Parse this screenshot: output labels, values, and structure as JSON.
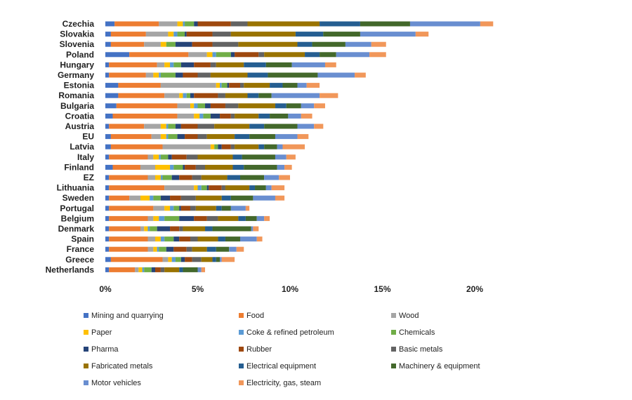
{
  "chart_data": {
    "type": "bar",
    "orientation": "horizontal",
    "stacked": true,
    "title": "",
    "xlabel": "",
    "ylabel": "",
    "xlim": [
      0,
      21
    ],
    "x_ticks": [
      0,
      5,
      10,
      15,
      20
    ],
    "x_tick_labels": [
      "0%",
      "5%",
      "10%",
      "15%",
      "20%"
    ],
    "grid": false,
    "legend_position": "bottom",
    "categories": [
      "Czechia",
      "Slovakia",
      "Slovenia",
      "Poland",
      "Hungary",
      "Germany",
      "Estonia",
      "Romania",
      "Bulgaria",
      "Croatia",
      "Austria",
      "EU",
      "Latvia",
      "Italy",
      "Finland",
      "EZ",
      "Lithuania",
      "Sweden",
      "Portugal",
      "Belgium",
      "Denmark",
      "Spain",
      "France",
      "Greece",
      "Netherlands"
    ],
    "series": [
      {
        "name": "Mining and quarrying",
        "color": "#4472c4",
        "values": [
          0.5,
          0.3,
          0.3,
          1.3,
          0.2,
          0.2,
          0.7,
          0.7,
          0.6,
          0.4,
          0.2,
          0.3,
          0.3,
          0.2,
          0.4,
          0.2,
          0.2,
          0.2,
          0.2,
          0.2,
          0.2,
          0.2,
          0.2,
          0.3,
          0.2
        ]
      },
      {
        "name": "Food",
        "color": "#ed7d31",
        "values": [
          2.4,
          1.9,
          1.8,
          3.2,
          2.6,
          2.0,
          2.3,
          2.5,
          3.3,
          3.5,
          1.9,
          2.2,
          2.8,
          2.1,
          1.5,
          2.1,
          3.0,
          1.1,
          2.4,
          2.1,
          1.7,
          2.1,
          2.1,
          2.8,
          1.4
        ]
      },
      {
        "name": "Wood",
        "color": "#a5a5a5",
        "values": [
          1.0,
          1.2,
          0.9,
          1.0,
          0.4,
          0.4,
          3.0,
          0.8,
          0.7,
          0.9,
          0.9,
          0.5,
          2.6,
          0.3,
          0.8,
          0.4,
          1.6,
          0.6,
          0.6,
          0.3,
          0.2,
          0.4,
          0.3,
          0.3,
          0.2
        ]
      },
      {
        "name": "Paper",
        "color": "#ffc000",
        "values": [
          0.3,
          0.3,
          0.3,
          0.3,
          0.3,
          0.3,
          0.2,
          0.2,
          0.2,
          0.3,
          0.3,
          0.3,
          0.2,
          0.3,
          0.8,
          0.3,
          0.2,
          0.5,
          0.3,
          0.3,
          0.2,
          0.3,
          0.2,
          0.2,
          0.2
        ]
      },
      {
        "name": "Coke & refined petroleum",
        "color": "#5b9bd5",
        "values": [
          0.1,
          0.2,
          0.0,
          0.2,
          0.2,
          0.1,
          0.1,
          0.2,
          0.2,
          0.2,
          0.1,
          0.1,
          0.0,
          0.1,
          0.2,
          0.1,
          0.2,
          0.2,
          0.2,
          0.3,
          0.1,
          0.2,
          0.1,
          0.2,
          0.1
        ]
      },
      {
        "name": "Chemicals",
        "color": "#70ad47",
        "values": [
          0.5,
          0.4,
          0.5,
          0.8,
          0.4,
          0.8,
          0.3,
          0.2,
          0.4,
          0.4,
          0.4,
          0.5,
          0.2,
          0.4,
          0.5,
          0.5,
          0.3,
          0.4,
          0.3,
          0.8,
          0.4,
          0.5,
          0.4,
          0.3,
          0.4
        ]
      },
      {
        "name": "Pharma",
        "color": "#264478",
        "values": [
          0.2,
          0.1,
          0.9,
          0.2,
          0.7,
          0.4,
          0.1,
          0.2,
          0.3,
          0.5,
          0.3,
          0.4,
          0.2,
          0.2,
          0.1,
          0.4,
          0.1,
          0.5,
          0.1,
          0.8,
          0.7,
          0.3,
          0.4,
          0.2,
          0.2
        ]
      },
      {
        "name": "Rubber",
        "color": "#9e480e",
        "values": [
          1.8,
          1.4,
          1.1,
          1.3,
          0.9,
          0.8,
          0.6,
          1.3,
          0.8,
          0.6,
          0.9,
          0.7,
          0.5,
          0.8,
          0.6,
          0.7,
          0.7,
          0.6,
          0.5,
          0.7,
          0.5,
          0.6,
          0.7,
          0.4,
          0.3
        ]
      },
      {
        "name": "Basic metals",
        "color": "#636363",
        "values": [
          0.9,
          1.0,
          1.4,
          0.3,
          0.3,
          0.7,
          0.2,
          0.4,
          0.7,
          0.2,
          0.9,
          0.5,
          0.2,
          0.6,
          0.5,
          0.5,
          0.2,
          0.8,
          0.3,
          0.6,
          0.2,
          0.4,
          0.3,
          0.5,
          0.2
        ]
      },
      {
        "name": "Fabricated metals",
        "color": "#997300",
        "values": [
          3.9,
          3.5,
          3.2,
          2.2,
          1.5,
          2.0,
          1.4,
          1.2,
          2.0,
          1.3,
          1.9,
          1.5,
          1.3,
          1.9,
          1.5,
          1.4,
          1.3,
          1.4,
          1.1,
          1.1,
          1.2,
          1.1,
          0.8,
          0.6,
          0.8
        ]
      },
      {
        "name": "Electrical equipment",
        "color": "#255e91",
        "values": [
          2.2,
          1.5,
          0.8,
          0.8,
          1.2,
          1.1,
          0.7,
          0.6,
          0.6,
          0.6,
          0.8,
          0.8,
          0.3,
          0.5,
          0.6,
          0.7,
          0.3,
          0.5,
          0.3,
          0.4,
          0.4,
          0.4,
          0.5,
          0.2,
          0.2
        ]
      },
      {
        "name": "Machinery & equipment",
        "color": "#43682b",
        "values": [
          2.7,
          2.0,
          1.8,
          0.9,
          1.4,
          2.7,
          0.8,
          0.7,
          0.8,
          1.0,
          1.8,
          1.4,
          0.7,
          1.8,
          1.8,
          1.3,
          0.6,
          1.2,
          0.5,
          0.6,
          2.1,
          0.8,
          0.7,
          0.2,
          0.8
        ]
      },
      {
        "name": "Motor vehicles",
        "color": "#698ed0",
        "values": [
          3.8,
          3.0,
          1.4,
          1.8,
          1.8,
          2.0,
          0.5,
          2.6,
          0.7,
          0.7,
          0.9,
          1.2,
          0.3,
          0.6,
          0.4,
          0.8,
          0.3,
          1.2,
          0.8,
          0.4,
          0.1,
          0.9,
          0.4,
          0.1,
          0.2
        ]
      },
      {
        "name": "Electricity, gas, steam",
        "color": "#f1975a",
        "values": [
          0.7,
          0.7,
          0.8,
          0.9,
          0.6,
          0.6,
          0.7,
          1.0,
          0.6,
          0.6,
          0.5,
          0.6,
          1.2,
          0.5,
          0.4,
          0.6,
          0.7,
          0.5,
          0.2,
          0.3,
          0.3,
          0.3,
          0.4,
          0.7,
          0.2
        ]
      }
    ]
  }
}
